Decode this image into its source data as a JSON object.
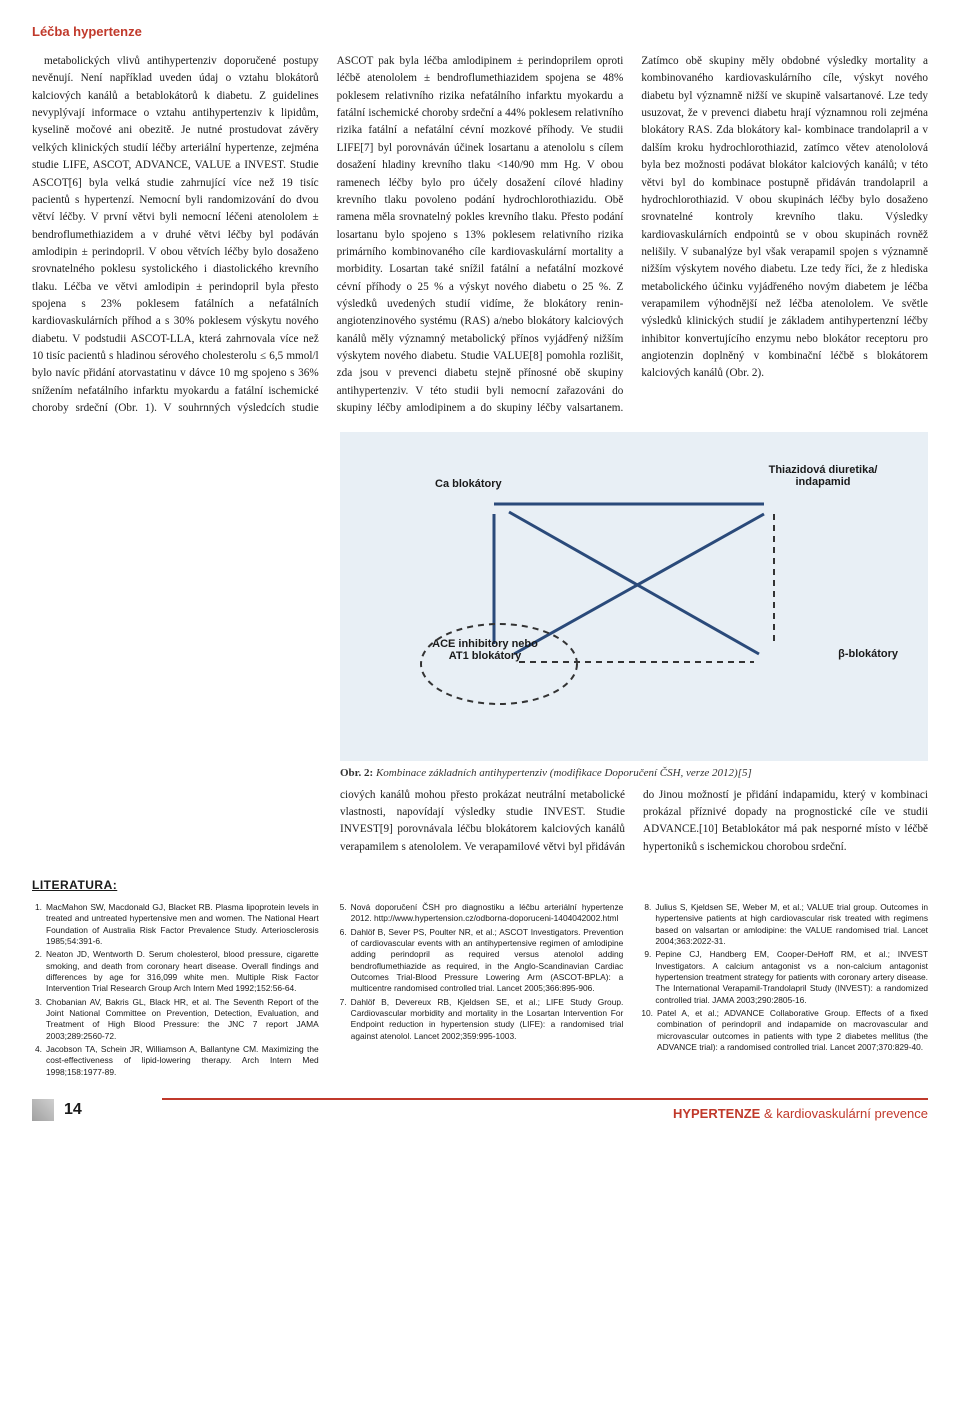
{
  "header": {
    "section_title": "Léčba hypertenze"
  },
  "body": {
    "col_text": "metabolických vlivů antihypertenziv doporučené postupy nevěnují. Není například uveden údaj o vztahu blokátorů kalciových kanálů a betablokátorů k diabetu. Z guidelines nevyplývají informace o vztahu antihypertenziv k lipidům, kyselině močové ani obezitě. Je nutné prostudovat závěry velkých klinických studií léčby arteriální hypertenze, zejména studie LIFE, ASCOT, ADVANCE, VALUE a INVEST. Studie ASCOT[6] byla velká studie zahrnující více než 19 tisíc pacientů s hypertenzí. Nemocní byli randomizování do dvou větví léčby. V první větvi byli nemocní léčeni atenololem ± bendroflumethiazidem a v druhé větvi léčby byl podáván amlodipin ± perindopril. V obou větvích léčby bylo dosaženo srovnatelného poklesu systolického i diastolického krevního tlaku. Léčba ve větvi amlodipin ± perindopril byla přesto spojena s 23% poklesem fatálních a nefatálních kardiovaskulárních příhod a s 30% poklesem výskytu nového diabetu. V podstudii ASCOT-LLA, která zahrnovala více než 10 tisíc pacientů s hladinou sérového cholesterolu ≤ 6,5 mmol/l bylo navíc přidání atorvastatinu v dávce 10 mg spojeno s 36% snížením nefatálního infarktu myokardu a fatální ischemické choroby srdeční (Obr. 1). V souhrnných výsledcích studie ASCOT pak byla léčba amlodipinem ± perindoprilem oproti léčbě atenololem ± bendroflumethiazidem spojena se 48% poklesem relativního rizika nefatálního infarktu myokardu a fatální ischemické choroby srdeční a 44% poklesem relativního rizika fatální a nefatální cévní mozkové příhody. Ve studii LIFE[7] byl porovnáván účinek losartanu a atenololu s cílem dosažení hladiny krevního tlaku <140/90 mm Hg. V obou ramenech léčby bylo pro účely dosažení cílové hladiny krevního tlaku povoleno podání hydrochlorothiazidu. Obě ramena měla srovnatelný pokles krevního tlaku. Přesto podání losartanu bylo spojeno s 13% poklesem relativního rizika primárního kombinovaného cíle kardiovaskulární mortality a morbidity. Losartan také snížil fatální a nefatální mozkové cévní příhody o 25 % a výskyt nového diabetu o 25 %. Z výsledků uvedených studií vidíme, že blokátory renin-angiotenzinového systému (RAS) a/nebo blokátory kalciových kanálů měly významný metabolický přínos vyjádřený nižším výskytem nového diabetu. Studie VALUE[8] pomohla rozlišit, zda jsou v prevenci diabetu stejně přínosné obě skupiny antihypertenziv. V této studii byli nemocní zařazováni do skupiny léčby amlodipinem a do skupiny léčby valsartanem. Zatímco obě skupiny měly obdobné výsledky mortality a kombinovaného kardiovaskulárního cíle, výskyt nového diabetu byl významně nižší ve skupině valsartanové. Lze tedy usuzovat, že v prevenci diabetu hrají významnou roli zejména blokátory RAS. Zda blokátory kal- kombinace trandolapril a v dalším kroku hydrochlorothiazid, zatímco větev atenololová byla bez možnosti podávat blokátor kalciových kanálů; v této větvi byl do kombinace postupně přidáván trandolapril a hydrochlorothiazid. V obou skupinách léčby bylo dosaženo srovnatelné kontroly krevního tlaku. Výsledky kardiovaskulárních endpointů se v obou skupinách rovněž nelišily. V subanalýze byl však verapamil spojen s významně nižším výskytem nového diabetu. Lze tedy říci, že z hlediska metabolického účinku vyjádřeného novým diabetem je léčba verapamilem výhodnější než léčba atenololem. Ve světle výsledků klinických studií je základem antihypertenzní léčby inhibitor konvertujícího enzymu nebo blokátor receptoru pro angiotenzin doplněný v kombinační léčbě s blokátorem kalciových kanálů (Obr. 2)."
  },
  "figure": {
    "labels": {
      "ca": "Ca blokátory",
      "thiaz": "Thiazidová diuretika/ indapamid",
      "ace": "ACE inhibitory nebo AT1 blokátory",
      "beta": "β-blokátory"
    },
    "caption_bold": "Obr. 2:",
    "caption_rest": "Kombinace základních antihypertenziv (modifikace Doporučení ČSH, verze 2012)[5]",
    "colors": {
      "bg": "#e8eff5",
      "line": "#2a4a7a",
      "dashed": "#333333"
    }
  },
  "below_fig_text": "ciových kanálů mohou přesto prokázat neutrální metabolické vlastnosti, napovídají výsledky studie INVEST. Studie INVEST[9] porovnávala léčbu blokátorem kalciových kanálů verapamilem s atenololem. Ve verapamilové větvi byl přidáván do      Jinou možností je přidání indapamidu, který v kombinaci prokázal příznivé dopady na prognostické cíle ve studii ADVANCE.[10] Betablokátor má pak nesporné místo v léčbě hypertoniků s ischemickou chorobou srdeční.",
  "literature": {
    "heading": "LITERATURA:",
    "items": [
      "MacMahon SW, Macdonald GJ, Blacket RB. Plasma lipoprotein levels in treated and untreated hypertensive men and women. The National Heart Foundation of Australia Risk Factor Prevalence Study. Arteriosclerosis 1985;54:391-6.",
      "Neaton JD, Wentworth D. Serum cholesterol, blood pressure, cigarette smoking, and death from coronary heart disease. Overall findings and differences by age for 316,099 white men. Multiple Risk Factor Intervention Trial Research Group Arch Intern Med 1992;152:56-64.",
      "Chobanian AV, Bakris GL, Black HR, et al. The Seventh Report of the Joint National Committee on Prevention, Detection, Evaluation, and Treatment of High Blood Pressure: the JNC 7 report JAMA 2003;289:2560-72.",
      "Jacobson TA, Schein JR, Williamson A, Ballantyne CM. Maximizing the cost-effectiveness of lipid-lowering therapy. Arch Intern Med 1998;158:1977-89.",
      "Nová doporučení ČSH pro diagnostiku a léčbu arteriální hypertenze 2012. http://www.hypertension.cz/odborna-doporuceni-1404042002.html",
      "Dahlöf B, Sever PS, Poulter NR, et al.; ASCOT Investigators. Prevention of cardiovascular events with an antihypertensive regimen of amlodipine adding perindopril as required versus atenolol adding bendroflumethiazide as required, in the Anglo-Scandinavian Cardiac Outcomes Trial-Blood Pressure Lowering Arm (ASCOT-BPLA): a multicentre randomised controlled trial. Lancet 2005;366:895-906.",
      "Dahlöf B, Devereux RB, Kjeldsen SE, et al.; LIFE Study Group. Cardiovascular morbidity and mortality in the Losartan Intervention For Endpoint reduction in hypertension study (LIFE): a randomised trial against atenolol. Lancet 2002;359:995-1003.",
      "Julius S, Kjeldsen SE, Weber M, et al.; VALUE trial group. Outcomes in hypertensive patients at high cardiovascular risk treated with regimens based on valsartan or amlodipine: the VALUE randomised trial. Lancet 2004;363:2022-31.",
      "Pepine CJ, Handberg EM, Cooper-DeHoff RM, et al.; INVEST Investigators. A calcium antagonist vs a non-calcium antagonist hypertension treatment strategy for patients with coronary artery disease. The International Verapamil-Trandolapril Study (INVEST): a randomized controlled trial. JAMA 2003;290:2805-16.",
      "Patel A, et al.; ADVANCE Collaborative Group. Effects of a fixed combination of perindopril and indapamide on macrovascular and microvascular outcomes in patients with type 2 diabetes mellitus (the ADVANCE trial): a randomised controlled trial. Lancet 2007;370:829-40."
    ]
  },
  "footer": {
    "page": "14",
    "journal_bold": "HYPERTENZE",
    "journal_rest": " & kardiovaskulární prevence"
  }
}
